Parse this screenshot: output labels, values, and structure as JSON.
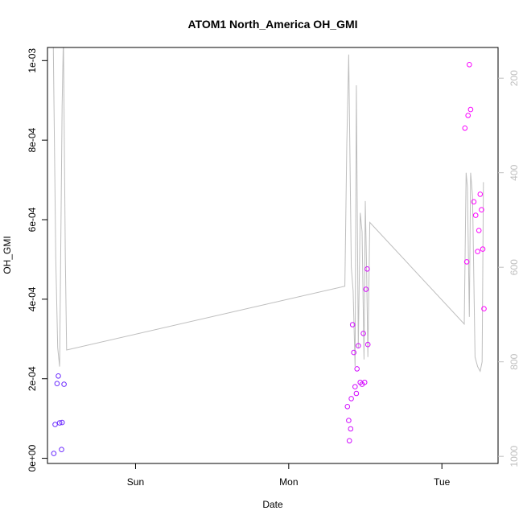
{
  "chart_data": {
    "type": "scatter",
    "title": "ATOM1 North_America OH_GMI",
    "xlabel": "Date",
    "ylabel": "OH_GMI",
    "x_ticks": [
      {
        "label": "Sun",
        "value": 24
      },
      {
        "label": "Mon",
        "value": 48
      },
      {
        "label": "Tue",
        "value": 72
      }
    ],
    "xlim": [
      10.2,
      80.8
    ],
    "ylim": [
      -1.3e-05,
      0.001033
    ],
    "y_ticks": [
      {
        "label": "0e+00",
        "value": 0
      },
      {
        "label": "2e-04",
        "value": 0.0002
      },
      {
        "label": "4e-04",
        "value": 0.0004
      },
      {
        "label": "6e-04",
        "value": 0.0006
      },
      {
        "label": "8e-04",
        "value": 0.0008
      },
      {
        "label": "1e-03",
        "value": 0.001
      }
    ],
    "y2_ticks": [
      {
        "label": "200",
        "value": 200
      },
      {
        "label": "400",
        "value": 400
      },
      {
        "label": "600",
        "value": 600
      },
      {
        "label": "800",
        "value": 800
      },
      {
        "label": "1000",
        "value": 1000
      }
    ],
    "y2lim": [
      1015,
      135
    ],
    "y2_reversed": true,
    "grid": false,
    "line_color": "#bebebe",
    "point_colors": {
      "low": "#6a2cff",
      "high": "#ff00ff"
    },
    "points": [
      {
        "x": 11.2,
        "y": 1.2e-05
      },
      {
        "x": 11.4,
        "y": 8.5e-05
      },
      {
        "x": 11.7,
        "y": 0.000188
      },
      {
        "x": 11.9,
        "y": 0.000207
      },
      {
        "x": 12.1,
        "y": 8.9e-05
      },
      {
        "x": 12.4,
        "y": 2.2e-05
      },
      {
        "x": 12.5,
        "y": 9e-05
      },
      {
        "x": 12.8,
        "y": 0.000186
      },
      {
        "x": 57.2,
        "y": 0.00013
      },
      {
        "x": 57.4,
        "y": 9.5e-05
      },
      {
        "x": 57.5,
        "y": 4.4e-05
      },
      {
        "x": 57.7,
        "y": 7.4e-05
      },
      {
        "x": 57.8,
        "y": 0.00015
      },
      {
        "x": 58.0,
        "y": 0.000336
      },
      {
        "x": 58.2,
        "y": 0.000266
      },
      {
        "x": 58.4,
        "y": 0.00018
      },
      {
        "x": 58.6,
        "y": 0.000163
      },
      {
        "x": 58.7,
        "y": 0.000225
      },
      {
        "x": 58.9,
        "y": 0.000283
      },
      {
        "x": 59.2,
        "y": 0.000191
      },
      {
        "x": 59.5,
        "y": 0.000186
      },
      {
        "x": 59.7,
        "y": 0.000314
      },
      {
        "x": 59.9,
        "y": 0.000191
      },
      {
        "x": 60.1,
        "y": 0.000425
      },
      {
        "x": 60.3,
        "y": 0.000476
      },
      {
        "x": 60.4,
        "y": 0.000286
      },
      {
        "x": 75.6,
        "y": 0.00083
      },
      {
        "x": 75.9,
        "y": 0.000494
      },
      {
        "x": 76.1,
        "y": 0.000862
      },
      {
        "x": 76.3,
        "y": 0.00099
      },
      {
        "x": 76.5,
        "y": 0.000877
      },
      {
        "x": 77.0,
        "y": 0.000645
      },
      {
        "x": 77.3,
        "y": 0.000611
      },
      {
        "x": 77.6,
        "y": 0.00052
      },
      {
        "x": 77.8,
        "y": 0.000573
      },
      {
        "x": 78.0,
        "y": 0.000664
      },
      {
        "x": 78.2,
        "y": 0.000625
      },
      {
        "x": 78.4,
        "y": 0.000526
      },
      {
        "x": 78.6,
        "y": 0.000376
      }
    ],
    "line_y2": [
      {
        "x": 11.1,
        "y2": 110
      },
      {
        "x": 11.5,
        "y2": 580
      },
      {
        "x": 11.8,
        "y2": 770
      },
      {
        "x": 12.1,
        "y2": 810
      },
      {
        "x": 12.5,
        "y2": 260
      },
      {
        "x": 12.7,
        "y2": 110
      },
      {
        "x": 13.0,
        "y2": 580
      },
      {
        "x": 13.2,
        "y2": 775
      },
      {
        "x": 56.8,
        "y2": 640
      },
      {
        "x": 57.1,
        "y2": 340
      },
      {
        "x": 57.4,
        "y2": 150
      },
      {
        "x": 57.8,
        "y2": 600
      },
      {
        "x": 58.1,
        "y2": 650
      },
      {
        "x": 58.4,
        "y2": 810
      },
      {
        "x": 58.6,
        "y2": 215
      },
      {
        "x": 58.9,
        "y2": 770
      },
      {
        "x": 59.2,
        "y2": 485
      },
      {
        "x": 59.5,
        "y2": 525
      },
      {
        "x": 59.8,
        "y2": 795
      },
      {
        "x": 60.0,
        "y2": 460
      },
      {
        "x": 60.2,
        "y2": 600
      },
      {
        "x": 60.4,
        "y2": 790
      },
      {
        "x": 60.7,
        "y2": 505
      },
      {
        "x": 75.5,
        "y2": 720
      },
      {
        "x": 75.8,
        "y2": 400
      },
      {
        "x": 76.0,
        "y2": 430
      },
      {
        "x": 76.3,
        "y2": 705
      },
      {
        "x": 76.5,
        "y2": 400
      },
      {
        "x": 76.8,
        "y2": 450
      },
      {
        "x": 77.2,
        "y2": 790
      },
      {
        "x": 77.6,
        "y2": 810
      },
      {
        "x": 78.0,
        "y2": 820
      },
      {
        "x": 78.3,
        "y2": 800
      },
      {
        "x": 78.5,
        "y2": 420
      }
    ]
  }
}
